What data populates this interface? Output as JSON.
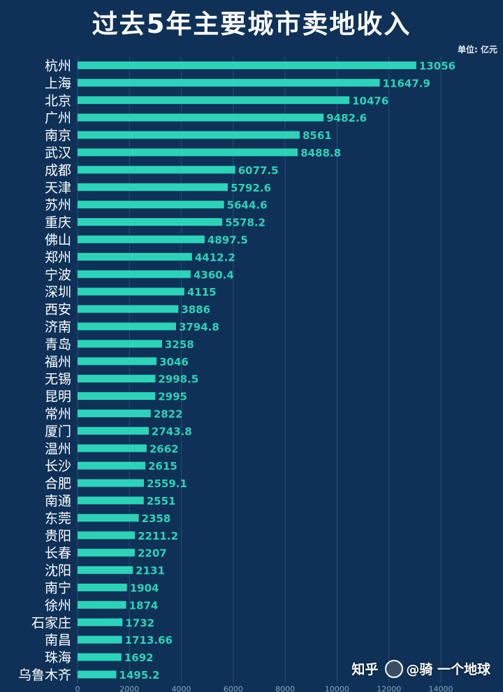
{
  "title": "过去5年主要城市卖地收入",
  "unit": "单位: 亿元",
  "watermark": {
    "brand": "知乎",
    "author": "@骑 一个地球"
  },
  "colors": {
    "background": "#0f3157",
    "bar": "#2bd3b9",
    "label": "#2bd3b9",
    "grid": "#2a4e74",
    "axis_text": "#8aa4bf"
  },
  "chart_data": {
    "type": "bar",
    "orientation": "horizontal",
    "title": "过去5年主要城市卖地收入",
    "unit": "亿元",
    "xlim": [
      0,
      14000
    ],
    "x_ticks": [
      0,
      2000,
      4000,
      6000,
      8000,
      10000,
      12000,
      14000
    ],
    "grid": true,
    "categories": [
      "杭州",
      "上海",
      "北京",
      "广州",
      "南京",
      "武汉",
      "成都",
      "天津",
      "苏州",
      "重庆",
      "佛山",
      "郑州",
      "宁波",
      "深圳",
      "西安",
      "济南",
      "青岛",
      "福州",
      "无锡",
      "昆明",
      "常州",
      "厦门",
      "温州",
      "长沙",
      "合肥",
      "南通",
      "东莞",
      "贵阳",
      "长春",
      "沈阳",
      "南宁",
      "徐州",
      "石家庄",
      "南昌",
      "珠海",
      "乌鲁木齐"
    ],
    "values": [
      13056,
      11647.9,
      10476,
      9482.6,
      8561,
      8488.8,
      6077.5,
      5792.6,
      5644.6,
      5578.2,
      4897.5,
      4412.2,
      4360.4,
      4115,
      3886,
      3794.8,
      3258,
      3046,
      2998.5,
      2995,
      2822,
      2743.8,
      2662,
      2615,
      2559.1,
      2551,
      2358,
      2211.2,
      2207,
      2131,
      1904,
      1874,
      1732,
      1713.66,
      1692,
      1495.2
    ],
    "value_labels": [
      "13056",
      "11647.9",
      "10476",
      "9482.6",
      "8561",
      "8488.8",
      "6077.5",
      "5792.6",
      "5644.6",
      "5578.2",
      "4897.5",
      "4412.2",
      "4360.4",
      "4115",
      "3886",
      "3794.8",
      "3258",
      "3046",
      "2998.5",
      "2995",
      "2822",
      "2743.8",
      "2662",
      "2615",
      "2559.1",
      "2551",
      "2358",
      "2211.2",
      "2207",
      "2131",
      "1904",
      "1874",
      "1732",
      "1713.66",
      "1692",
      "1495.2"
    ]
  }
}
